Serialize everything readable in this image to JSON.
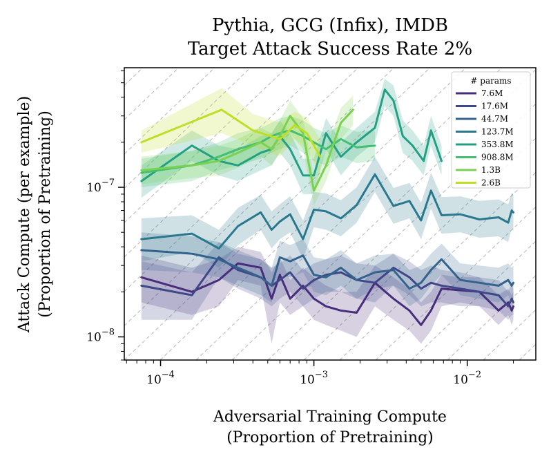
{
  "chart_data": {
    "type": "line",
    "title": "Pythia, GCG (Infix), IMDB",
    "subtitle": "Target Attack Success Rate 2%",
    "xlabel_line1": "Adversarial Training Compute",
    "xlabel_line2": "(Proportion of Pretraining)",
    "ylabel_line1": "Attack Compute (per example)",
    "ylabel_line2": "(Proportion of Pretraining)",
    "x_scale": "log",
    "y_scale": "log",
    "xlim": [
      5.8e-05,
      0.028
    ],
    "ylim": [
      7e-09,
      6.3e-07
    ],
    "x_ticks": [
      {
        "value": 0.0001,
        "base": "10",
        "exp": "−4"
      },
      {
        "value": 0.001,
        "base": "10",
        "exp": "−3"
      },
      {
        "value": 0.01,
        "base": "10",
        "exp": "−2"
      }
    ],
    "y_ticks": [
      {
        "value": 1e-08,
        "base": "10",
        "exp": "−8"
      },
      {
        "value": 1e-07,
        "base": "10",
        "exp": "−7"
      }
    ],
    "grid": "diagonal dashed lines",
    "legend": {
      "title": "# params",
      "placement": "top-right"
    },
    "series": [
      {
        "name": "7.6M",
        "color": "#472d7b",
        "x": [
          7.5e-05,
          0.00016,
          0.00024,
          0.00032,
          0.00045,
          0.00053,
          0.0006,
          0.0007,
          0.00085,
          0.001,
          0.0012,
          0.0015,
          0.0019,
          0.0025,
          0.0033,
          0.0042,
          0.005,
          0.0058,
          0.0068,
          0.009,
          0.012,
          0.016,
          0.0185,
          0.0195,
          0.02
        ],
        "y": [
          2.5e-08,
          2e-08,
          2.4e-08,
          3.1e-08,
          2.9e-08,
          1.8e-08,
          2.6e-08,
          1.8e-08,
          2.2e-08,
          1.8e-08,
          1.6e-08,
          1.5e-08,
          1.45e-08,
          2.3e-08,
          1.8e-08,
          1.5e-08,
          1.2e-08,
          1.5e-08,
          2.1e-08,
          2.05e-08,
          2e-08,
          1.5e-08,
          1.7e-08,
          1.5e-08,
          1.6e-08
        ],
        "lower": [
          1.7e-08,
          1.4e-08,
          1.6e-08,
          2.4e-08,
          2.2e-08,
          9e-09,
          1.7e-08,
          1.4e-08,
          1.6e-08,
          1.3e-08,
          1.2e-08,
          1.1e-08,
          1e-08,
          1.6e-08,
          1.3e-08,
          1.1e-08,
          9e-09,
          1.1e-08,
          1.6e-08,
          1.7e-08,
          1.6e-08,
          1.2e-08,
          1.4e-08,
          1.2e-08,
          1.3e-08
        ],
        "upper": [
          3.5e-08,
          2.9e-08,
          3.3e-08,
          4e-08,
          3.7e-08,
          2.7e-08,
          3.4e-08,
          2.4e-08,
          2.9e-08,
          2.5e-08,
          2.2e-08,
          2e-08,
          2e-08,
          3e-08,
          2.5e-08,
          2.1e-08,
          1.7e-08,
          2e-08,
          2.6e-08,
          2.5e-08,
          2.5e-08,
          1.9e-08,
          2.1e-08,
          1.9e-08,
          2e-08
        ]
      },
      {
        "name": "17.6M",
        "color": "#3f4788",
        "x": [
          7.5e-05,
          0.00016,
          0.00024,
          0.00032,
          0.00045,
          0.00053,
          0.0006,
          0.0007,
          0.00085,
          0.001,
          0.0012,
          0.0015,
          0.0019,
          0.0025,
          0.0033,
          0.0042,
          0.005,
          0.0058,
          0.0068,
          0.009,
          0.012,
          0.016,
          0.0185,
          0.0195,
          0.02
        ],
        "y": [
          2.2e-08,
          1.9e-08,
          3.4e-08,
          2.8e-08,
          2.5e-08,
          2.2e-08,
          2.4e-08,
          2.7e-08,
          2.1e-08,
          2.4e-08,
          2.6e-08,
          2.7e-08,
          2.4e-08,
          2.3e-08,
          2.9e-08,
          2.5e-08,
          2.1e-08,
          2.3e-08,
          2.2e-08,
          2.1e-08,
          2e-08,
          1.9e-08,
          1.6e-08,
          1.8e-08,
          1.7e-08
        ],
        "lower": [
          1.3e-08,
          1.3e-08,
          2.5e-08,
          2.1e-08,
          1.8e-08,
          1.6e-08,
          1.8e-08,
          2e-08,
          1.6e-08,
          1.8e-08,
          2e-08,
          2e-08,
          1.8e-08,
          1.7e-08,
          2.2e-08,
          1.9e-08,
          1.6e-08,
          1.7e-08,
          1.7e-08,
          1.6e-08,
          1.6e-08,
          1.5e-08,
          1.3e-08,
          1.4e-08,
          1.4e-08
        ],
        "upper": [
          3.2e-08,
          2.7e-08,
          4.3e-08,
          3.6e-08,
          3.3e-08,
          2.9e-08,
          3.1e-08,
          3.5e-08,
          2.8e-08,
          3.1e-08,
          3.3e-08,
          3.5e-08,
          3.1e-08,
          3e-08,
          3.6e-08,
          3.2e-08,
          2.8e-08,
          3e-08,
          2.8e-08,
          2.7e-08,
          2.5e-08,
          2.4e-08,
          2e-08,
          2.3e-08,
          2.1e-08
        ]
      },
      {
        "name": "44.7M",
        "color": "#33638d",
        "x": [
          7.5e-05,
          0.00016,
          0.00024,
          0.00032,
          0.00045,
          0.00053,
          0.0006,
          0.0007,
          0.00085,
          0.001,
          0.0012,
          0.0015,
          0.0019,
          0.0025,
          0.0033,
          0.0042,
          0.005,
          0.0058,
          0.0068,
          0.009,
          0.012,
          0.016,
          0.0185,
          0.0195,
          0.02
        ],
        "y": [
          3.8e-08,
          3.6e-08,
          3.3e-08,
          2.9e-08,
          2.5e-08,
          2.2e-08,
          3.4e-08,
          3.2e-08,
          3.5e-08,
          2.6e-08,
          2.5e-08,
          2.9e-08,
          2.4e-08,
          2.7e-08,
          2.8e-08,
          2.1e-08,
          2.3e-08,
          2.8e-08,
          3.3e-08,
          2.4e-08,
          2.3e-08,
          2.2e-08,
          2.4e-08,
          2.2e-08,
          2.3e-08
        ],
        "lower": [
          2.8e-08,
          2.7e-08,
          2.5e-08,
          2.2e-08,
          1.9e-08,
          1.7e-08,
          2.6e-08,
          2.5e-08,
          2.7e-08,
          2e-08,
          1.9e-08,
          2.2e-08,
          1.8e-08,
          2.1e-08,
          2.2e-08,
          1.6e-08,
          1.8e-08,
          2.2e-08,
          2.6e-08,
          1.9e-08,
          1.8e-08,
          1.7e-08,
          1.9e-08,
          1.7e-08,
          1.8e-08
        ],
        "upper": [
          5e-08,
          4.7e-08,
          4.3e-08,
          3.8e-08,
          3.3e-08,
          2.9e-08,
          4.4e-08,
          4.1e-08,
          4.5e-08,
          3.4e-08,
          3.3e-08,
          3.8e-08,
          3.1e-08,
          3.5e-08,
          3.6e-08,
          2.8e-08,
          3e-08,
          3.6e-08,
          4.2e-08,
          3.1e-08,
          3e-08,
          2.9e-08,
          3.1e-08,
          2.9e-08,
          3e-08
        ]
      },
      {
        "name": "123.7M",
        "color": "#2a788e",
        "x": [
          7.5e-05,
          0.00016,
          0.00024,
          0.00032,
          0.00045,
          0.00053,
          0.0006,
          0.0007,
          0.00085,
          0.001,
          0.0012,
          0.0015,
          0.0019,
          0.0025,
          0.0033,
          0.0042,
          0.005,
          0.0058,
          0.0068,
          0.009,
          0.012,
          0.016,
          0.0185,
          0.0195,
          0.02
        ],
        "y": [
          4.5e-08,
          4.9e-08,
          3.9e-08,
          5.5e-08,
          6.8e-08,
          5.2e-08,
          5.9e-08,
          6.6e-08,
          4.5e-08,
          7.1e-08,
          6.9e-08,
          6.2e-08,
          7.6e-08,
          1.22e-07,
          7.5e-08,
          8.1e-08,
          6e-08,
          9.5e-08,
          6.5e-08,
          6.6e-08,
          6.1e-08,
          6.3e-08,
          5.8e-08,
          7e-08,
          6.8e-08
        ],
        "lower": [
          3.2e-08,
          3.7e-08,
          2.9e-08,
          4.1e-08,
          5.2e-08,
          3.9e-08,
          4.5e-08,
          5e-08,
          3.3e-08,
          5.4e-08,
          5.2e-08,
          4.7e-08,
          5.8e-08,
          9.3e-08,
          5.7e-08,
          6.2e-08,
          4.5e-08,
          7.2e-08,
          4.9e-08,
          5e-08,
          4.6e-08,
          4.7e-08,
          4.3e-08,
          5.3e-08,
          5.1e-08
        ],
        "upper": [
          6.2e-08,
          6.5e-08,
          5.2e-08,
          7.3e-08,
          8.9e-08,
          6.9e-08,
          7.7e-08,
          8.7e-08,
          6e-08,
          9.3e-08,
          9.1e-08,
          8.2e-08,
          1e-07,
          1.6e-07,
          9.9e-08,
          1.07e-07,
          7.9e-08,
          1.25e-07,
          8.6e-08,
          8.7e-08,
          8.1e-08,
          8.3e-08,
          7.7e-08,
          9.2e-08,
          9e-08
        ]
      },
      {
        "name": "353.8M",
        "color": "#23a083",
        "x": [
          7.5e-05,
          0.00016,
          0.00024,
          0.00032,
          0.00045,
          0.00053,
          0.0006,
          0.0007,
          0.00085,
          0.001,
          0.0012,
          0.0015,
          0.0019,
          0.0025,
          0.0029,
          0.0033,
          0.0038,
          0.0044,
          0.0052,
          0.0058,
          0.0068
        ],
        "y": [
          1.1e-07,
          1.9e-07,
          1.5e-07,
          1.4e-07,
          1.7e-07,
          1.8e-07,
          2.2e-07,
          1.8e-07,
          1.2e-07,
          1.2e-07,
          2.3e-07,
          1.6e-07,
          2e-07,
          2.5e-07,
          4.5e-07,
          3.8e-07,
          2.2e-07,
          1.9e-07,
          1.5e-07,
          2.4e-07,
          1.5e-07
        ],
        "lower": [
          8.5e-08,
          1.5e-07,
          1.2e-07,
          1.1e-07,
          1.3e-07,
          1.4e-07,
          1.7e-07,
          1.4e-07,
          9e-08,
          9e-08,
          1.8e-07,
          1.2e-07,
          1.6e-07,
          2e-07,
          3.5e-07,
          3e-07,
          1.7e-07,
          1.5e-07,
          1.2e-07,
          1.9e-07,
          1.2e-07
        ],
        "upper": [
          1.4e-07,
          2.4e-07,
          1.9e-07,
          1.8e-07,
          2.2e-07,
          2.3e-07,
          2.8e-07,
          2.3e-07,
          1.55e-07,
          1.55e-07,
          2.9e-07,
          2e-07,
          2.5e-07,
          3.2e-07,
          5.3e-07,
          4.8e-07,
          2.8e-07,
          2.4e-07,
          1.9e-07,
          3e-07,
          1.9e-07
        ]
      },
      {
        "name": "908.8M",
        "color": "#44bf70",
        "x": [
          7.5e-05,
          0.00016,
          0.00024,
          0.00032,
          0.00045,
          0.00053,
          0.0006,
          0.0007,
          0.00085,
          0.001,
          0.0012,
          0.0015,
          0.0019,
          0.0025
        ],
        "y": [
          1.25e-07,
          1.4e-07,
          1.6e-07,
          1.8e-07,
          2e-07,
          2.2e-07,
          2.3e-07,
          2.4e-07,
          2.2e-07,
          2e-07,
          1.8e-07,
          2.1e-07,
          1.85e-07,
          1.9e-07
        ],
        "lower": [
          1e-07,
          1.1e-07,
          1.3e-07,
          1.4e-07,
          1.55e-07,
          1.7e-07,
          1.8e-07,
          1.9e-07,
          1.7e-07,
          1.5e-07,
          1.4e-07,
          1.6e-07,
          1.45e-07,
          1.5e-07
        ],
        "upper": [
          1.55e-07,
          1.75e-07,
          2e-07,
          2.3e-07,
          2.5e-07,
          2.7e-07,
          2.9e-07,
          3e-07,
          2.8e-07,
          2.5e-07,
          2.3e-07,
          2.6e-07,
          2.35e-07,
          2.4e-07
        ]
      },
      {
        "name": "1.3B",
        "color": "#7ad151",
        "x": [
          7.5e-05,
          0.00016,
          0.00024,
          0.00032,
          0.00045,
          0.00053,
          0.0006,
          0.0007,
          0.00085,
          0.001,
          0.0012,
          0.0015,
          0.0018
        ],
        "y": [
          1.3e-07,
          1.4e-07,
          1.5e-07,
          1.7e-07,
          2e-07,
          1.8e-07,
          2.2e-07,
          3e-07,
          2.3e-07,
          9.5e-08,
          1.4e-07,
          2.7e-07,
          3.3e-07
        ],
        "lower": [
          1.05e-07,
          1.15e-07,
          1.2e-07,
          1.35e-07,
          1.6e-07,
          1.4e-07,
          1.7e-07,
          2.3e-07,
          1.8e-07,
          7.5e-08,
          1.1e-07,
          2.1e-07,
          2.6e-07
        ],
        "upper": [
          1.6e-07,
          1.75e-07,
          1.9e-07,
          2.1e-07,
          2.5e-07,
          2.3e-07,
          2.8e-07,
          3.8e-07,
          2.9e-07,
          1.2e-07,
          1.8e-07,
          3.4e-07,
          4.1e-07
        ]
      },
      {
        "name": "2.6B",
        "color": "#bddf26",
        "x": [
          7.5e-05,
          0.00025,
          0.0004,
          0.0006,
          0.00075,
          0.0009,
          0.0011
        ],
        "y": [
          2e-07,
          3.3e-07,
          2.4e-07,
          2.1e-07,
          2.6e-07,
          2.3e-07,
          1.6e-07
        ],
        "lower": [
          1.7e-07,
          2.3e-07,
          1.9e-07,
          1.6e-07,
          2.1e-07,
          1.8e-07,
          1.2e-07
        ],
        "upper": [
          2.4e-07,
          4.6e-07,
          3.1e-07,
          2.7e-07,
          3.2e-07,
          2.9e-07,
          2.1e-07
        ]
      }
    ]
  }
}
